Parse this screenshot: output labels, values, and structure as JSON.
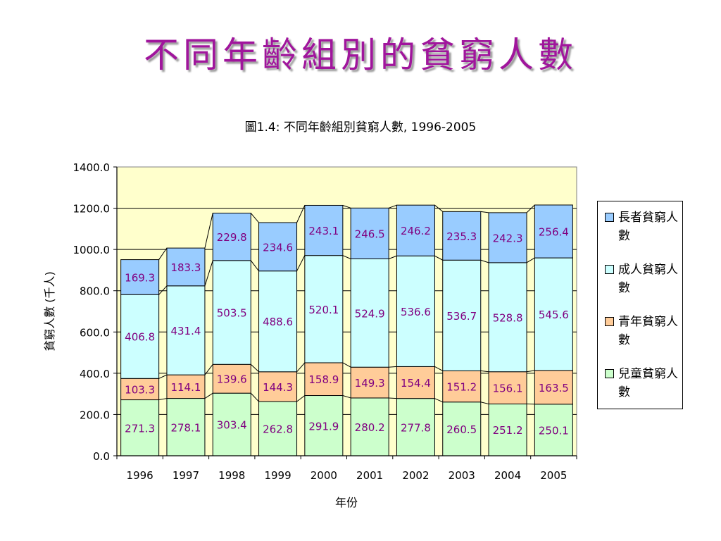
{
  "slide_title": "不同年齡組別的貧窮人數",
  "chart_data": {
    "type": "bar",
    "stacked": true,
    "title": "圖1.4: 不同年齡組別貧窮人數, 1996-2005",
    "xlabel": "年份",
    "ylabel": "貧窮人數 (千人)",
    "ylim": [
      0,
      1400
    ],
    "yticks": [
      "0.0",
      "200.0",
      "400.0",
      "600.0",
      "800.0",
      "1000.0",
      "1200.0",
      "1400.0"
    ],
    "categories": [
      "1996",
      "1997",
      "1998",
      "1999",
      "2000",
      "2001",
      "2002",
      "2003",
      "2004",
      "2005"
    ],
    "grid": true,
    "legend_position": "right",
    "plot_background": "#ffffcc",
    "label_color": "#800080",
    "series": [
      {
        "name": "兒童貧窮人數",
        "color": "#ccffcc",
        "values": [
          271.3,
          278.1,
          303.4,
          262.8,
          291.9,
          280.2,
          277.8,
          260.5,
          251.2,
          250.1
        ],
        "labels": [
          "271.3",
          "278.1",
          "303.4",
          "262.8",
          "291.9",
          "280.2",
          "277.8",
          "260.5",
          "251.2",
          "250.1"
        ]
      },
      {
        "name": "青年貧窮人數",
        "color": "#ffcc99",
        "values": [
          103.3,
          114.1,
          139.6,
          144.3,
          158.9,
          149.3,
          154.4,
          151.2,
          156.1,
          163.5
        ],
        "labels": [
          "103.3",
          "114.1",
          "139.6",
          "144.3",
          "158.9",
          "149.3",
          "154.4",
          "151.2",
          "156.1",
          "163.5"
        ]
      },
      {
        "name": "成人貧窮人數",
        "color": "#ccffff",
        "values": [
          406.8,
          431.4,
          503.5,
          488.6,
          520.1,
          524.9,
          536.6,
          536.7,
          528.8,
          545.6
        ],
        "labels": [
          "406.8",
          "431.4",
          "503.5",
          "488.6",
          "520.1",
          "524.9",
          "536.6",
          "536.7",
          "528.8",
          "545.6"
        ]
      },
      {
        "name": "長者貧窮人數",
        "color": "#99ccff",
        "values": [
          169.3,
          183.3,
          229.8,
          234.6,
          243.1,
          246.5,
          246.2,
          235.3,
          242.3,
          256.4
        ],
        "labels": [
          "169.3",
          "183.3",
          "229.8",
          "234.6",
          "243.1",
          "246.5",
          "246.2",
          "235.3",
          "242.3",
          "256.4"
        ]
      }
    ]
  }
}
